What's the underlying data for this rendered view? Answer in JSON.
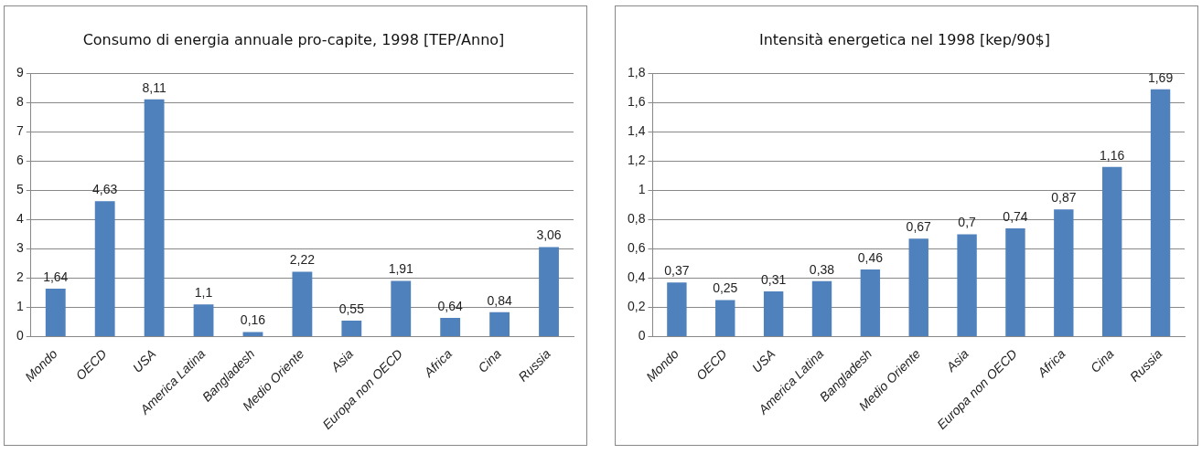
{
  "chart_data": [
    {
      "type": "bar",
      "title": "Consumo di energia annuale pro-capite, 1998 [TEP/Anno]",
      "categories": [
        "Mondo",
        "OECD",
        "USA",
        "America Latina",
        "Bangladesh",
        "Medio Oriente",
        "Asia",
        "Europa non OECD",
        "Africa",
        "Cina",
        "Russia"
      ],
      "values": [
        1.64,
        4.63,
        8.11,
        1.1,
        0.16,
        2.22,
        0.55,
        1.91,
        0.64,
        0.84,
        3.06
      ],
      "value_labels": [
        "1,64",
        "4,63",
        "8,11",
        "1,1",
        "0,16",
        "2,22",
        "0,55",
        "1,91",
        "0,64",
        "0,84",
        "3,06"
      ],
      "color": "#4f81bd",
      "ylim": [
        0,
        9
      ],
      "yticks": [
        0,
        1,
        2,
        3,
        4,
        5,
        6,
        7,
        8,
        9
      ],
      "grid": "y",
      "legend": false
    },
    {
      "type": "bar",
      "title": "Intensità energetica nel 1998 [kep/90$]",
      "categories": [
        "Mondo",
        "OECD",
        "USA",
        "America Latina",
        "Bangladesh",
        "Medio Oriente",
        "Asia",
        "Europa non OECD",
        "Africa",
        "Cina",
        "Russia"
      ],
      "values": [
        0.37,
        0.25,
        0.31,
        0.38,
        0.46,
        0.67,
        0.7,
        0.74,
        0.87,
        1.16,
        1.69
      ],
      "value_labels": [
        "0,37",
        "0,25",
        "0,31",
        "0,38",
        "0,46",
        "0,67",
        "0,7",
        "0,74",
        "0,87",
        "1,16",
        "1,69"
      ],
      "color": "#4f81bd",
      "ylim": [
        0,
        1.8
      ],
      "yticks": [
        0,
        {
          "value": 0.2,
          "label": "0,2"
        },
        {
          "value": 0.4,
          "label": "0,4"
        },
        {
          "value": 0.6,
          "label": "0,6"
        },
        {
          "value": 0.8,
          "label": "0,8"
        },
        1,
        {
          "value": 1.2,
          "label": "1,2"
        },
        {
          "value": 1.4,
          "label": "1,4"
        },
        {
          "value": 1.6,
          "label": "1,6"
        },
        {
          "value": 1.8,
          "label": "1,8"
        }
      ],
      "grid": "y",
      "legend": false
    }
  ]
}
